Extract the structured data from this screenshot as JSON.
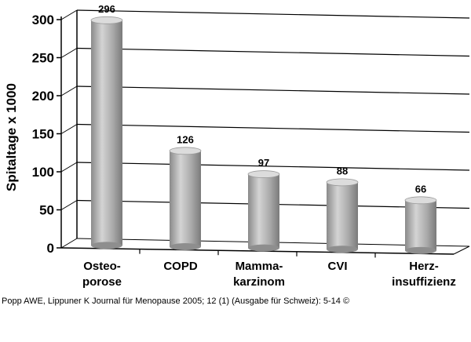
{
  "chart_data": {
    "type": "bar",
    "title": "",
    "ylabel": "Spitaltage x 1000",
    "xlabel": "",
    "ylim": [
      0,
      300
    ],
    "yticks": [
      0,
      50,
      100,
      150,
      200,
      250,
      300
    ],
    "grid": true,
    "categories": [
      [
        "Osteo-",
        "porose"
      ],
      [
        "COPD"
      ],
      [
        "Mamma-",
        "karzinom"
      ],
      [
        "CVI"
      ],
      [
        "Herz-",
        "insuffizienz"
      ]
    ],
    "values": [
      296,
      126,
      97,
      88,
      66
    ],
    "colors": {
      "bar": "#b0b0b0",
      "bar_dark": "#7e7e7e",
      "bar_light": "#dcdcdc",
      "axis": "#000000"
    }
  },
  "footer": {
    "caption": "Popp AWE, Lippuner K Journal für Menopause 2005; 12 (1) (Ausgabe für Schweiz): 5-14 ©"
  }
}
